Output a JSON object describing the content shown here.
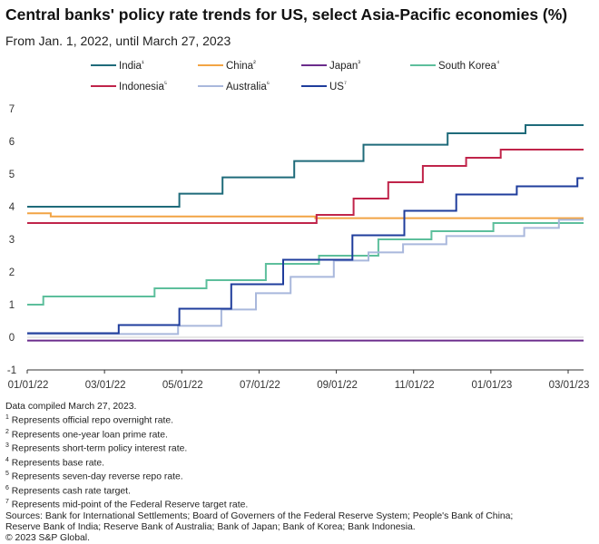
{
  "header": {
    "title": "Central banks' policy rate trends for US, select Asia-Pacific economies (%)",
    "subtitle": "From Jan. 1, 2022, until March 27, 2023"
  },
  "chart_data": {
    "type": "line",
    "step": true,
    "title": "Central banks' policy rate trends for US, select Asia-Pacific economies (%)",
    "subtitle": "From Jan. 1, 2022, until March 27, 2023",
    "xlabel": "",
    "ylabel": "",
    "x_tick_labels": [
      "01/01/22",
      "03/01/22",
      "05/01/22",
      "07/01/22",
      "09/01/22",
      "11/01/22",
      "01/01/23",
      "03/01/23"
    ],
    "xlim": [
      "2022-01-01",
      "2023-03-27"
    ],
    "ylim": [
      -1,
      7
    ],
    "y_ticks": [
      -1,
      0,
      1,
      2,
      3,
      4,
      5,
      6,
      7
    ],
    "grid": false,
    "legend_position": "top",
    "series": [
      {
        "name": "India",
        "marker": "¹",
        "color": "#1f6b7a",
        "x": [
          "2022-01-01",
          "2022-05-04",
          "2022-06-08",
          "2022-08-05",
          "2022-09-30",
          "2022-12-07",
          "2023-02-08",
          "2023-03-27"
        ],
        "y": [
          4.0,
          4.4,
          4.9,
          5.4,
          5.9,
          6.25,
          6.5,
          6.5
        ]
      },
      {
        "name": "China",
        "marker": "²",
        "color": "#f2a444",
        "x": [
          "2022-01-01",
          "2022-01-20",
          "2022-08-22",
          "2023-03-27"
        ],
        "y": [
          3.8,
          3.7,
          3.65,
          3.65
        ]
      },
      {
        "name": "Japan",
        "marker": "³",
        "color": "#6b2c8c",
        "x": [
          "2022-01-01",
          "2023-03-27"
        ],
        "y": [
          -0.1,
          -0.1
        ]
      },
      {
        "name": "South Korea",
        "marker": "⁴",
        "color": "#5dbf9c",
        "x": [
          "2022-01-01",
          "2022-01-14",
          "2022-04-14",
          "2022-05-26",
          "2022-07-13",
          "2022-08-25",
          "2022-10-12",
          "2022-11-24",
          "2023-01-13",
          "2023-03-27"
        ],
        "y": [
          1.0,
          1.25,
          1.5,
          1.75,
          2.25,
          2.5,
          3.0,
          3.25,
          3.5,
          3.5
        ]
      },
      {
        "name": "Indonesia",
        "marker": "⁵",
        "color": "#c0244a",
        "x": [
          "2022-01-01",
          "2022-08-23",
          "2022-09-22",
          "2022-10-20",
          "2022-11-17",
          "2022-12-22",
          "2023-01-19",
          "2023-03-27"
        ],
        "y": [
          3.5,
          3.75,
          4.25,
          4.75,
          5.25,
          5.5,
          5.75,
          5.75
        ]
      },
      {
        "name": "Australia",
        "marker": "⁶",
        "color": "#a9b8dc",
        "x": [
          "2022-01-01",
          "2022-05-03",
          "2022-06-07",
          "2022-07-05",
          "2022-08-02",
          "2022-09-06",
          "2022-10-04",
          "2022-11-01",
          "2022-12-06",
          "2023-02-07",
          "2023-03-07",
          "2023-03-27"
        ],
        "y": [
          0.1,
          0.35,
          0.85,
          1.35,
          1.85,
          2.35,
          2.6,
          2.85,
          3.1,
          3.35,
          3.6,
          3.6
        ]
      },
      {
        "name": "US",
        "marker": "⁷",
        "color": "#1f3d9c",
        "x": [
          "2022-01-01",
          "2022-03-16",
          "2022-05-04",
          "2022-06-15",
          "2022-07-27",
          "2022-09-21",
          "2022-11-02",
          "2022-12-14",
          "2023-02-01",
          "2023-03-22",
          "2023-03-27"
        ],
        "y": [
          0.125,
          0.375,
          0.875,
          1.625,
          2.375,
          3.125,
          3.875,
          4.375,
          4.625,
          4.875,
          4.875
        ]
      }
    ]
  },
  "notes": {
    "compiled": "Data compiled March 27, 2023.",
    "footnotes": [
      {
        "mark": "1",
        "text": " Represents official repo overnight rate."
      },
      {
        "mark": "2",
        "text": " Represents one-year loan prime rate."
      },
      {
        "mark": "3",
        "text": " Represents short-term policy interest rate."
      },
      {
        "mark": "4",
        "text": " Represents base rate."
      },
      {
        "mark": "5",
        "text": " Represents seven-day reverse repo rate."
      },
      {
        "mark": "6",
        "text": " Represents cash rate target."
      },
      {
        "mark": "7",
        "text": " Represents mid-point of the Federal Reserve target rate."
      }
    ],
    "sources_line1": "Sources: Bank for International Settlements; Board of Governers of the Federal Reserve System; People's Bank of China;",
    "sources_line2": "Reserve Bank of India; Reserve Bank of Australia; Bank of Japan; Bank of Korea; Bank Indonesia.",
    "copyright": "© 2023 S&P Global."
  }
}
